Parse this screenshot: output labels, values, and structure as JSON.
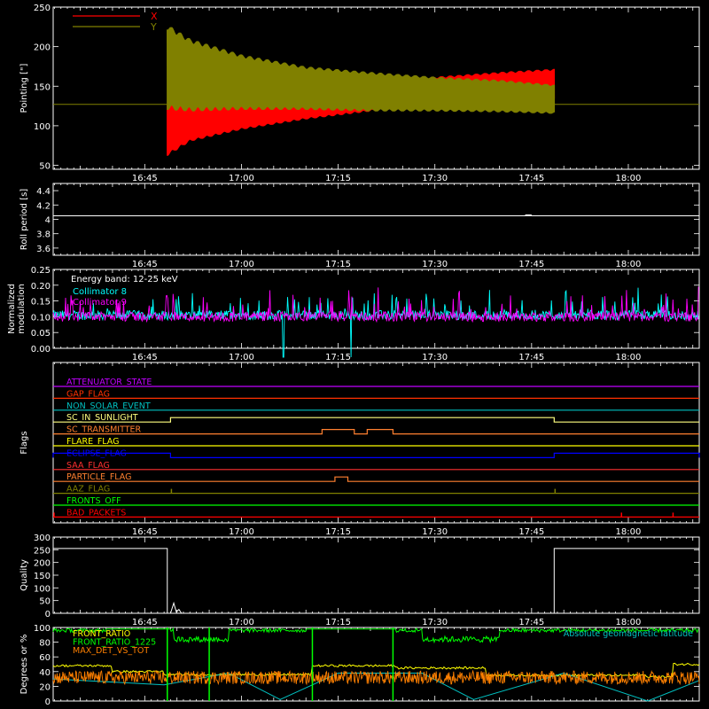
{
  "figure": {
    "background": "#000000",
    "axis_color": "#ffffff"
  },
  "time_axis": {
    "tick_labels": [
      "16:45",
      "17:00",
      "17:15",
      "17:30",
      "17:45",
      "18:00"
    ],
    "tick_minutes": [
      45,
      60,
      75,
      90,
      105,
      120
    ],
    "xlim_minutes": [
      30.8,
      131.0
    ]
  },
  "chart_data": [
    {
      "type": "line",
      "panel": "pointing",
      "ylabel": "Pointing [\"]",
      "ylim": [
        45,
        250
      ],
      "yticks": [
        50,
        100,
        150,
        200,
        250
      ],
      "legend_position": "top-left",
      "series": [
        {
          "name": "X",
          "color": "#ff0000",
          "start": 48.5,
          "end": 108.5,
          "envelope_x": [
            48.5,
            52,
            60,
            70,
            80,
            90,
            100,
            108.5
          ],
          "envelope_low": [
            62,
            80,
            95,
            108,
            118,
            126,
            130,
            132
          ],
          "envelope_high": [
            130,
            128,
            135,
            145,
            155,
            162,
            168,
            172
          ]
        },
        {
          "name": "Y",
          "color": "#808000",
          "start": 48.5,
          "end": 108.5,
          "envelope_x": [
            48.5,
            52,
            60,
            70,
            80,
            90,
            100,
            108.5
          ],
          "envelope_low": [
            120,
            118,
            120,
            120,
            118,
            118,
            117,
            115
          ],
          "envelope_high": [
            228,
            210,
            190,
            175,
            168,
            162,
            158,
            152
          ]
        }
      ],
      "reference_line": {
        "value": 127,
        "color": "#808000"
      }
    },
    {
      "type": "line",
      "panel": "roll_period",
      "ylabel": "Roll period [s]",
      "ylim": [
        3.5,
        4.5
      ],
      "yticks": [
        3.6,
        3.8,
        4.0,
        4.2,
        4.4
      ],
      "series": [
        {
          "y": 4.05,
          "color": "#ffffff"
        }
      ]
    },
    {
      "type": "line",
      "panel": "modulation",
      "ylabel": [
        "Normalized",
        "modulation"
      ],
      "ylim": [
        0,
        0.25
      ],
      "yticks": [
        0.0,
        0.05,
        0.1,
        0.15,
        0.2,
        0.25
      ],
      "ytick_labels": [
        "0.00",
        "0.05",
        "0.10",
        "0.15",
        "0.20",
        "0.25"
      ],
      "title": "Energy band: 12-25 keV",
      "series": [
        {
          "name": "Collimator 8",
          "color": "#00ffff",
          "base": 0.105,
          "drops_at": [
            66.5,
            77.0
          ]
        },
        {
          "name": "Collimator 9",
          "color": "#ff00ff",
          "base": 0.1
        }
      ]
    },
    {
      "type": "line",
      "panel": "flags",
      "ylabel": "Flags",
      "series": [
        {
          "name": "ATTENUATOR_STATE",
          "color": "#c000ff",
          "high": []
        },
        {
          "name": "GAP_FLAG",
          "color": "#ff3000",
          "high": []
        },
        {
          "name": "NON_SOLAR_EVENT",
          "color": "#00c0c0",
          "high": []
        },
        {
          "name": "SC_IN_SUNLIGHT",
          "color": "#ffff80",
          "high": [
            [
              49,
              108.5
            ]
          ]
        },
        {
          "name": "SC_TRANSMITTER",
          "color": "#ff8030",
          "high": [
            [
              72.5,
              77.5
            ],
            [
              79.5,
              83.5
            ]
          ]
        },
        {
          "name": "FLARE_FLAG",
          "color": "#ffff00",
          "high": []
        },
        {
          "name": "ECLIPSE_FLAG",
          "color": "#0000ff",
          "high": [
            [
              30.8,
              49
            ],
            [
              108.5,
              131
            ]
          ]
        },
        {
          "name": "SAA_FLAG",
          "color": "#ff3030",
          "high": []
        },
        {
          "name": "PARTICLE_FLAG",
          "color": "#ff8030",
          "high": [
            [
              74.5,
              76.5
            ]
          ]
        },
        {
          "name": "AAZ_FLAG",
          "color": "#808000",
          "spikes": [
            49,
            108.5
          ]
        },
        {
          "name": "FRONTS_OFF",
          "color": "#00ff00",
          "high": []
        },
        {
          "name": "BAD_PACKETS",
          "color": "#ff0000",
          "spikes": [
            30.8,
            118.8,
            126.8
          ]
        }
      ]
    },
    {
      "type": "line",
      "panel": "quality",
      "ylabel": "Quality",
      "ylim": [
        0,
        300
      ],
      "yticks": [
        0,
        50,
        100,
        150,
        200,
        250,
        300
      ],
      "series": [
        {
          "color": "#ffffff",
          "high_value": 255,
          "high_spans": [
            [
              30.8,
              48.5
            ],
            [
              108.5,
              131
            ]
          ],
          "spike_at": 49.5
        }
      ]
    },
    {
      "type": "line",
      "panel": "ratios",
      "ylabel": "Degrees or %",
      "ylim": [
        0,
        100
      ],
      "yticks": [
        0,
        20,
        40,
        60,
        80,
        100
      ],
      "series": [
        {
          "name": "FRONT_RATIO",
          "color": "#ffff00"
        },
        {
          "name": "FRONT_RATIO_1225",
          "color": "#00ff00"
        },
        {
          "name": "MAX_DET_VS_TOT",
          "color": "#ff8000"
        },
        {
          "name": "Absolute geomagnetic latitude",
          "color": "#00c0c0"
        }
      ]
    }
  ]
}
